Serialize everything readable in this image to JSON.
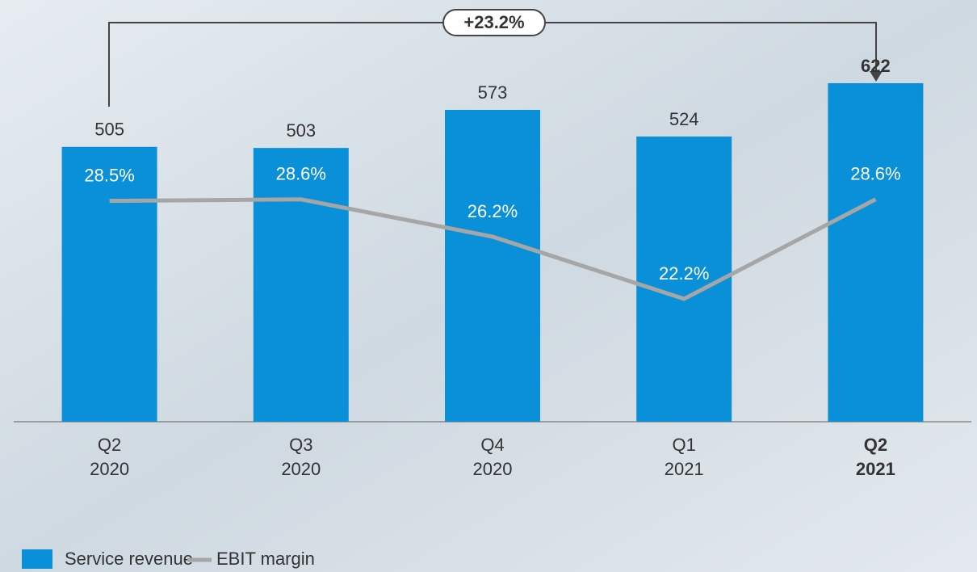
{
  "chart_data": {
    "type": "bar_line",
    "annotation": "+23.2%",
    "categories": [
      [
        "Q2",
        "2020"
      ],
      [
        "Q3",
        "2020"
      ],
      [
        "Q4",
        "2020"
      ],
      [
        "Q1",
        "2021"
      ],
      [
        "Q2",
        "2021"
      ]
    ],
    "series": [
      {
        "name": "Service revenue",
        "type": "bar",
        "color": "#0a90d8",
        "values": [
          505,
          503,
          573,
          524,
          622
        ]
      },
      {
        "name": "EBIT margin",
        "type": "line",
        "axis": "y2",
        "color": "#a6a6a6",
        "values": [
          28.5,
          28.6,
          26.2,
          22.2,
          28.6
        ],
        "value_labels": [
          "28.5%",
          "28.6%",
          "26.2%",
          "22.2%",
          "28.6%"
        ]
      }
    ],
    "ylim": [
      0,
      760
    ],
    "y2lim": [
      14.3,
      40.9
    ]
  }
}
